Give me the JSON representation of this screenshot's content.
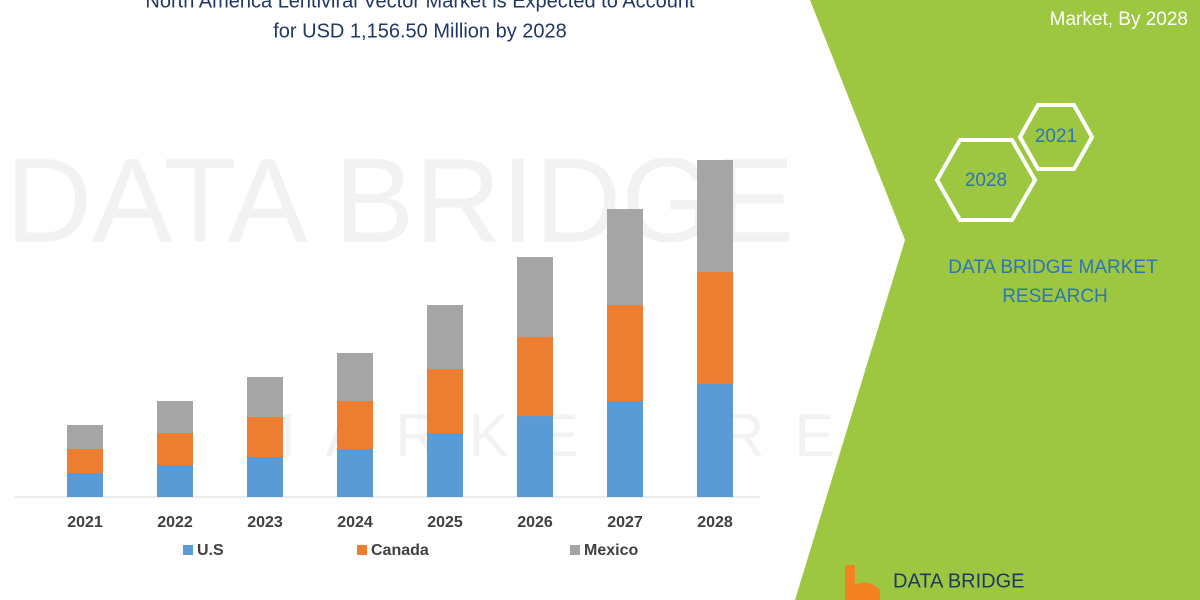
{
  "chart_data": {
    "type": "bar",
    "stacked": true,
    "title": [
      "North America Lentiviral Vector Market is Expected to Account",
      "for USD 1,156.50 Million by 2028"
    ],
    "categories": [
      "2021",
      "2022",
      "2023",
      "2024",
      "2025",
      "2026",
      "2027",
      "2028"
    ],
    "series": [
      {
        "name": "U.S",
        "color": "#5b9bd5",
        "values": [
          82.4,
          109.8,
          137.3,
          164.7,
          219.6,
          277.9,
          329.4,
          387.9
        ]
      },
      {
        "name": "Canada",
        "color": "#ed7d31",
        "values": [
          82.4,
          109.8,
          137.3,
          164.7,
          219.6,
          271.1,
          329.4,
          384.3
        ]
      },
      {
        "name": "Mexico",
        "color": "#a5a5a5",
        "values": [
          82.4,
          109.8,
          137.3,
          164.7,
          219.6,
          274.5,
          329.4,
          384.3
        ]
      }
    ]
  },
  "panel": {
    "subtitle": "Market, By 2028",
    "hexagons": [
      "2021",
      "2028"
    ],
    "brand": [
      "DATA BRIDGE MARKET",
      "RESEARCH"
    ],
    "logo": "DATA BRIDGE"
  },
  "watermark": [
    "DATA BRIDGE",
    "MARKET RESEARCH"
  ]
}
